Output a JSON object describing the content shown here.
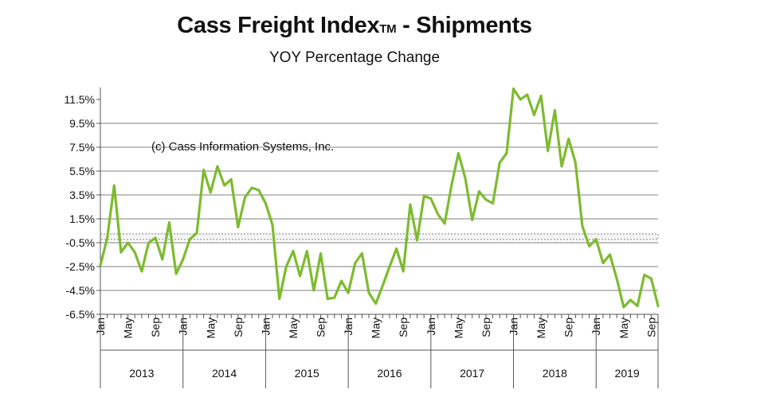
{
  "chart_data": {
    "type": "line",
    "title": "Cass Freight Index",
    "title_mark": "TM",
    "title_suffix": " - Shipments",
    "subtitle": "YOY Percentage Change",
    "annotation": "(c) Cass Information Systems, Inc.",
    "ylim": [
      -6.5,
      12.5
    ],
    "yticks": [
      "11.5%",
      "9.5%",
      "7.5%",
      "5.5%",
      "3.5%",
      "1.5%",
      "-0.5%",
      "-2.5%",
      "-4.5%",
      "-6.5%"
    ],
    "ytick_values": [
      11.5,
      9.5,
      7.5,
      5.5,
      3.5,
      1.5,
      -0.5,
      -2.5,
      -4.5,
      -6.5
    ],
    "month_ticks": [
      "Jan",
      "May",
      "Sep"
    ],
    "years": [
      "2013",
      "2014",
      "2015",
      "2016",
      "2017",
      "2018",
      "2019"
    ],
    "zero_band": true,
    "grid": true,
    "colors": {
      "line": "#7dbb2e",
      "grid": "#7f7f7f",
      "axis": "#555555"
    },
    "series": [
      {
        "values": [
          -2.4,
          -0.1,
          4.3,
          -1.3,
          -0.5,
          -1.3,
          -2.9,
          -0.5,
          -0.1,
          -1.9,
          1.2,
          -3.1,
          -1.9,
          -0.2,
          0.3,
          5.6,
          3.7,
          5.9,
          4.3,
          4.8,
          0.8,
          3.3,
          4.1,
          3.9,
          2.8,
          1.0,
          -5.2,
          -2.5,
          -1.2,
          -3.3,
          -1.2,
          -4.5,
          -1.4,
          -5.2,
          -5.1,
          -3.7,
          -4.7,
          -2.2,
          -1.4,
          -4.7,
          -5.6,
          -4.1,
          -2.5,
          -1.0,
          -2.9,
          2.7,
          -0.3,
          3.4,
          3.2,
          1.9,
          1.1,
          4.3,
          7.0,
          4.9,
          1.4,
          3.8,
          3.1,
          2.8,
          6.2,
          7.0,
          12.4,
          11.5,
          11.9,
          10.2,
          11.8,
          7.2,
          10.6,
          5.9,
          8.2,
          6.2,
          0.9,
          -0.8,
          -0.2,
          -2.2,
          -1.5,
          -3.5,
          -5.9,
          -5.3,
          -5.8,
          -3.2,
          -3.5,
          -5.8
        ]
      }
    ]
  }
}
